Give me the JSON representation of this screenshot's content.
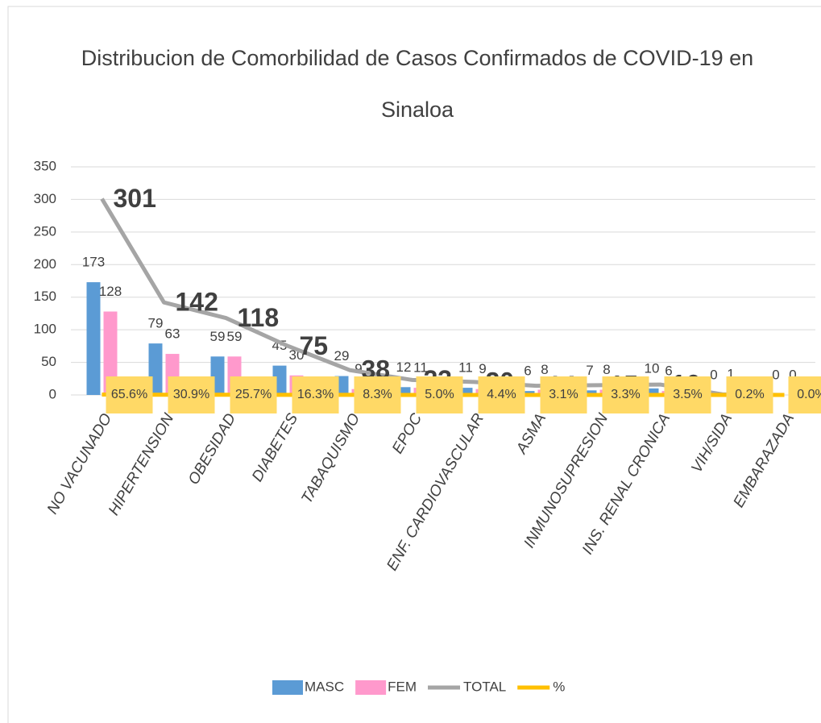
{
  "chart_data": {
    "type": "bar",
    "title": [
      "Distribucion de Comorbilidad de Casos Confirmados de COVID-19 en",
      "Sinaloa"
    ],
    "categories": [
      "NO VACUNADO",
      "HIPERTENSION",
      "OBESIDAD",
      "DIABETES",
      "TABAQUISMO",
      "EPOC",
      "ENF. CARDIOVASCULAR",
      "ASMA",
      "INMUNOSUPRESION",
      "INS. RENAL CRONICA",
      "VIH/SIDA",
      "EMBARAZADA"
    ],
    "series": [
      {
        "name": "MASC",
        "type": "bar",
        "color": "#5b9bd5",
        "values": [
          173,
          79,
          59,
          45,
          29,
          12,
          11,
          6,
          7,
          10,
          0,
          0
        ]
      },
      {
        "name": "FEM",
        "type": "bar",
        "color": "#ff99cc",
        "values": [
          128,
          63,
          59,
          30,
          9,
          11,
          9,
          8,
          8,
          6,
          1,
          0
        ]
      },
      {
        "name": "TOTAL",
        "type": "line",
        "color": "#a5a5a5",
        "values": [
          301,
          142,
          118,
          75,
          38,
          23,
          20,
          14,
          15,
          16,
          1,
          0
        ]
      },
      {
        "name": "%",
        "type": "line",
        "color": "#ffc000",
        "values": [
          0.656,
          0.309,
          0.257,
          0.163,
          0.083,
          0.05,
          0.044,
          0.031,
          0.033,
          0.035,
          0.002,
          0.0
        ],
        "value_labels": [
          "65.6%",
          "30.9%",
          "25.7%",
          "16.3%",
          "8.3%",
          "5.0%",
          "4.4%",
          "3.1%",
          "3.3%",
          "3.5%",
          "0.2%",
          "0.0%"
        ]
      }
    ],
    "ylim": [
      0,
      350
    ],
    "yticks": [
      0,
      50,
      100,
      150,
      200,
      250,
      300,
      350
    ],
    "grid": true,
    "legend": "bottom"
  }
}
